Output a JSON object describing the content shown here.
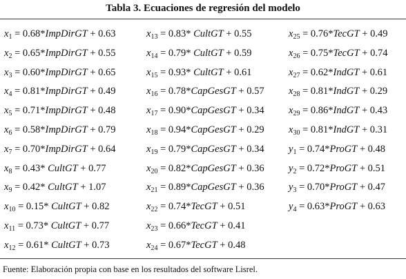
{
  "title": "Tabla 3. Ecuaciones de regresión del modelo",
  "equations": {
    "columns": [
      [
        {
          "v": "x",
          "s": "1",
          "a": " = 0.68*",
          "f": "ImpDirGT",
          "b": " + 0.63"
        },
        {
          "v": "x",
          "s": "2",
          "a": " = 0.65*",
          "f": "ImpDirGT",
          "b": " + 0.55"
        },
        {
          "v": "x",
          "s": "3",
          "a": " = 0.60*",
          "f": "ImpDirGT",
          "b": " + 0.65"
        },
        {
          "v": "x",
          "s": "4",
          "a": " = 0.81*",
          "f": "ImpDirGT",
          "b": " + 0.49"
        },
        {
          "v": "x",
          "s": "5",
          "a": " = 0.71*",
          "f": "ImpDirGT",
          "b": " + 0.48"
        },
        {
          "v": "x",
          "s": "6",
          "a": " = 0.58*",
          "f": "ImpDirGT",
          "b": " + 0.79"
        },
        {
          "v": "x",
          "s": "7",
          "a": " = 0.70*",
          "f": "ImpDirGT",
          "b": " + 0.64"
        },
        {
          "v": "x",
          "s": "8",
          "a": " = 0.43* ",
          "f": "CultGT",
          "b": " + 0.77"
        },
        {
          "v": "x",
          "s": "9",
          "a": " = 0.42* ",
          "f": "CultGT",
          "b": " + 1.07"
        },
        {
          "v": "x",
          "s": "10",
          "a": " = 0.15* ",
          "f": "CultGT",
          "b": " + 0.82"
        },
        {
          "v": "x",
          "s": "11",
          "a": " = 0.73* ",
          "f": "CultGT",
          "b": " + 0.77"
        },
        {
          "v": "x",
          "s": "12",
          "a": " = 0.61* ",
          "f": "CultGT",
          "b": " + 0.73"
        }
      ],
      [
        {
          "v": "x",
          "s": "13",
          "a": " = 0.83* ",
          "f": "CultGT",
          "b": " + 0.55"
        },
        {
          "v": "x",
          "s": "14",
          "a": " = 0.79* ",
          "f": "CultGT",
          "b": " + 0.59"
        },
        {
          "v": "x",
          "s": "15",
          "a": " = 0.93* ",
          "f": "CultGT",
          "b": " + 0.61"
        },
        {
          "v": "x",
          "s": "16",
          "a": " = 0.78*",
          "f": "CapGesGT",
          "b": " + 0.57"
        },
        {
          "v": "x",
          "s": "17",
          "a": " = 0.90*",
          "f": "CapGesGT",
          "b": " + 0.34"
        },
        {
          "v": "x",
          "s": "18",
          "a": " = 0.94*",
          "f": "CapGesGT",
          "b": " + 0.29"
        },
        {
          "v": "x",
          "s": "19",
          "a": " = 0.79*",
          "f": "CapGesGT",
          "b": " + 0.34"
        },
        {
          "v": "x",
          "s": "20",
          "a": " = 0.82*",
          "f": "CapGesGT",
          "b": " + 0.36"
        },
        {
          "v": "x",
          "s": "21",
          "a": " = 0.89*",
          "f": "CapGesGT",
          "b": " + 0.36"
        },
        {
          "v": "x",
          "s": "22",
          "a": " = 0.74*",
          "f": "TecGT",
          "b": " + 0.51"
        },
        {
          "v": "x",
          "s": "23",
          "a": " = 0.66*",
          "f": "TecGT",
          "b": " + 0.41"
        },
        {
          "v": "x",
          "s": "24",
          "a": " = 0.67*",
          "f": "TecGT",
          "b": " + 0.48"
        }
      ],
      [
        {
          "v": "x",
          "s": "25",
          "a": " = 0.76*",
          "f": "TecGT",
          "b": " + 0.49"
        },
        {
          "v": "x",
          "s": "26",
          "a": " = 0.75*",
          "f": "TecGT",
          "b": " + 0.74"
        },
        {
          "v": "x",
          "s": "27",
          "a": " = 0.62*",
          "f": "IndGT",
          "b": " + 0.61"
        },
        {
          "v": "x",
          "s": "28",
          "a": " = 0.81*",
          "f": "IndGT",
          "b": " + 0.29"
        },
        {
          "v": "x",
          "s": "29",
          "a": " = 0.86*",
          "f": "IndGT",
          "b": " + 0.43"
        },
        {
          "v": "x",
          "s": "30",
          "a": " = 0.81*",
          "f": "IndGT",
          "b": " + 0.31"
        },
        {
          "v": "y",
          "s": "1",
          "a": " = 0.74*",
          "f": "ProGT",
          "b": " + 0.48"
        },
        {
          "v": "y",
          "s": "2",
          "a": " = 0.72*",
          "f": "ProGT",
          "b": " + 0.51"
        },
        {
          "v": "y",
          "s": "3",
          "a": " = 0.70*",
          "f": "ProGT",
          "b": " + 0.47"
        },
        {
          "v": "y",
          "s": "4",
          "a": " = 0.63*",
          "f": "ProGT",
          "b": " + 0.63"
        }
      ]
    ]
  },
  "note": "Fuente: Elaboración propia con base en los resultados del software Lisrel."
}
